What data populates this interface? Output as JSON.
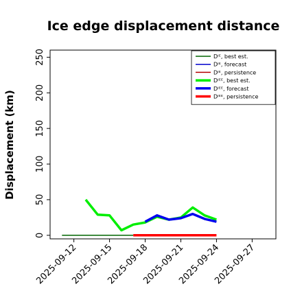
{
  "chart_data": {
    "type": "line",
    "title": "Ice edge displacement distance",
    "ylabel": "Displacement (km)",
    "xlabel": "",
    "ylim": [
      -5,
      260
    ],
    "xlim": [
      "2025-09-10",
      "2025-09-29"
    ],
    "yticks": [
      "0",
      "50",
      "100",
      "150",
      "200",
      "250"
    ],
    "xticks": [
      {
        "date": "2025-09-12",
        "label": "2025-09-12",
        "color": "#000000"
      },
      {
        "date": "2025-09-15",
        "label": "2025-09-15",
        "color": "#000000"
      },
      {
        "date": "2025-09-18",
        "label": "2025-09-18",
        "color": "#2a8a2a"
      },
      {
        "date": "2025-09-21",
        "label": "2025-09-21",
        "color": "#000000"
      },
      {
        "date": "2025-09-24",
        "label": "2025-09-24",
        "color": "#000000"
      },
      {
        "date": "2025-09-27",
        "label": "2025-09-27",
        "color": "#000000"
      }
    ],
    "grid": false,
    "legend_position": "top-right",
    "series": [
      {
        "name": "Dᴵᴱ, best est.",
        "color": "#006400",
        "width": 1.5,
        "x": [
          "2025-09-11",
          "2025-09-17"
        ],
        "y": [
          0,
          0
        ]
      },
      {
        "name": "Dᴵᴱ, forecast",
        "color": "#0000cc",
        "width": 1.5,
        "x": [],
        "y": []
      },
      {
        "name": "Dᴵᴱ, persistence",
        "color": "#b30000",
        "width": 1.5,
        "x": [],
        "y": []
      },
      {
        "name": "Dᴵᴱᴱ, best est.",
        "color": "#00ee00",
        "width": 3.5,
        "x": [
          "2025-09-13",
          "2025-09-14",
          "2025-09-15",
          "2025-09-16",
          "2025-09-17",
          "2025-09-18",
          "2025-09-19",
          "2025-09-20",
          "2025-09-21",
          "2025-09-22",
          "2025-09-23",
          "2025-09-24"
        ],
        "y": [
          50,
          29,
          28,
          7,
          15,
          18,
          26,
          22,
          25,
          39,
          28,
          22
        ]
      },
      {
        "name": "Dᴵᴱᴱ, forecast",
        "color": "#0000ee",
        "width": 3.5,
        "x": [
          "2025-09-18",
          "2025-09-19",
          "2025-09-20",
          "2025-09-21",
          "2025-09-22",
          "2025-09-23",
          "2025-09-24"
        ],
        "y": [
          19,
          28,
          22,
          24,
          30,
          23,
          19
        ]
      },
      {
        "name": "Dᴵᴱᴱ, persistence",
        "color": "#ff0000",
        "width": 3.5,
        "x": [
          "2025-09-17",
          "2025-09-24"
        ],
        "y": [
          0,
          0
        ]
      }
    ]
  }
}
